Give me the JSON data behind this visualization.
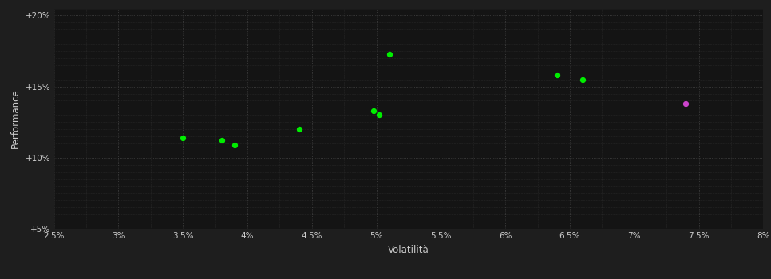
{
  "background_color": "#1e1e1e",
  "plot_bg_color": "#141414",
  "grid_color": "#444444",
  "text_color": "#cccccc",
  "xlabel": "Volatilità",
  "ylabel": "Performance",
  "xlim": [
    0.025,
    0.08
  ],
  "ylim": [
    0.05,
    0.205
  ],
  "xticks": [
    0.025,
    0.03,
    0.035,
    0.04,
    0.045,
    0.05,
    0.055,
    0.06,
    0.065,
    0.07,
    0.075,
    0.08
  ],
  "yticks": [
    0.05,
    0.1,
    0.15,
    0.2
  ],
  "ytick_labels": [
    "+5%",
    "+10%",
    "+15%",
    "+20%"
  ],
  "xtick_labels": [
    "2.5%",
    "3%",
    "3.5%",
    "4%",
    "4.5%",
    "5%",
    "5.5%",
    "6%",
    "6.5%",
    "7%",
    "7.5%",
    "8%"
  ],
  "minor_yticks_count": 10,
  "green_points": [
    [
      0.035,
      0.114
    ],
    [
      0.038,
      0.112
    ],
    [
      0.039,
      0.109
    ],
    [
      0.044,
      0.12
    ],
    [
      0.0498,
      0.133
    ],
    [
      0.0502,
      0.13
    ],
    [
      0.051,
      0.173
    ],
    [
      0.064,
      0.158
    ],
    [
      0.066,
      0.155
    ]
  ],
  "magenta_points": [
    [
      0.074,
      0.138
    ]
  ],
  "green_color": "#00ee00",
  "magenta_color": "#cc44cc",
  "point_size": 18,
  "marker": "o"
}
